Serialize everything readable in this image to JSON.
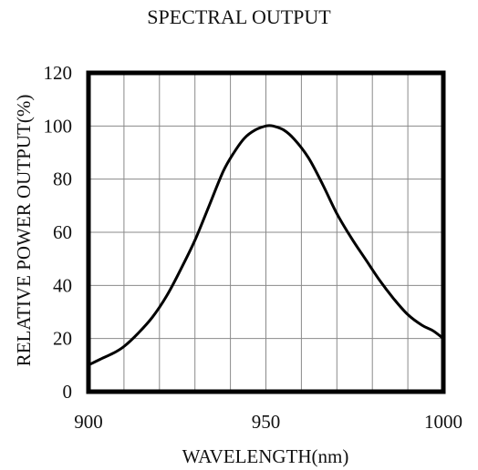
{
  "chart_data": {
    "type": "line",
    "title": "SPECTRAL OUTPUT",
    "xlabel": "WAVELENGTH(nm)",
    "ylabel": "RELATIVE POWER OUTPUT(%)",
    "xlim": [
      900,
      1000
    ],
    "ylim": [
      0,
      120
    ],
    "x_ticks": [
      900,
      950,
      1000
    ],
    "y_ticks": [
      0,
      20,
      40,
      60,
      80,
      100,
      120
    ],
    "grid": true,
    "series": [
      {
        "x": [
          900,
          903,
          907,
          910,
          914,
          918,
          922,
          926,
          930,
          934,
          938,
          941,
          944,
          947,
          950,
          952,
          955,
          958,
          962,
          966,
          970,
          974,
          978,
          982,
          986,
          990,
          994,
          997,
          1000
        ],
        "y": [
          10,
          12,
          14.5,
          17,
          22,
          28,
          36,
          46,
          57,
          70,
          83,
          90,
          95.5,
          98.5,
          100,
          100,
          98.5,
          95,
          88,
          78,
          67,
          58,
          50,
          42,
          35,
          29,
          25,
          23,
          20
        ]
      }
    ]
  }
}
